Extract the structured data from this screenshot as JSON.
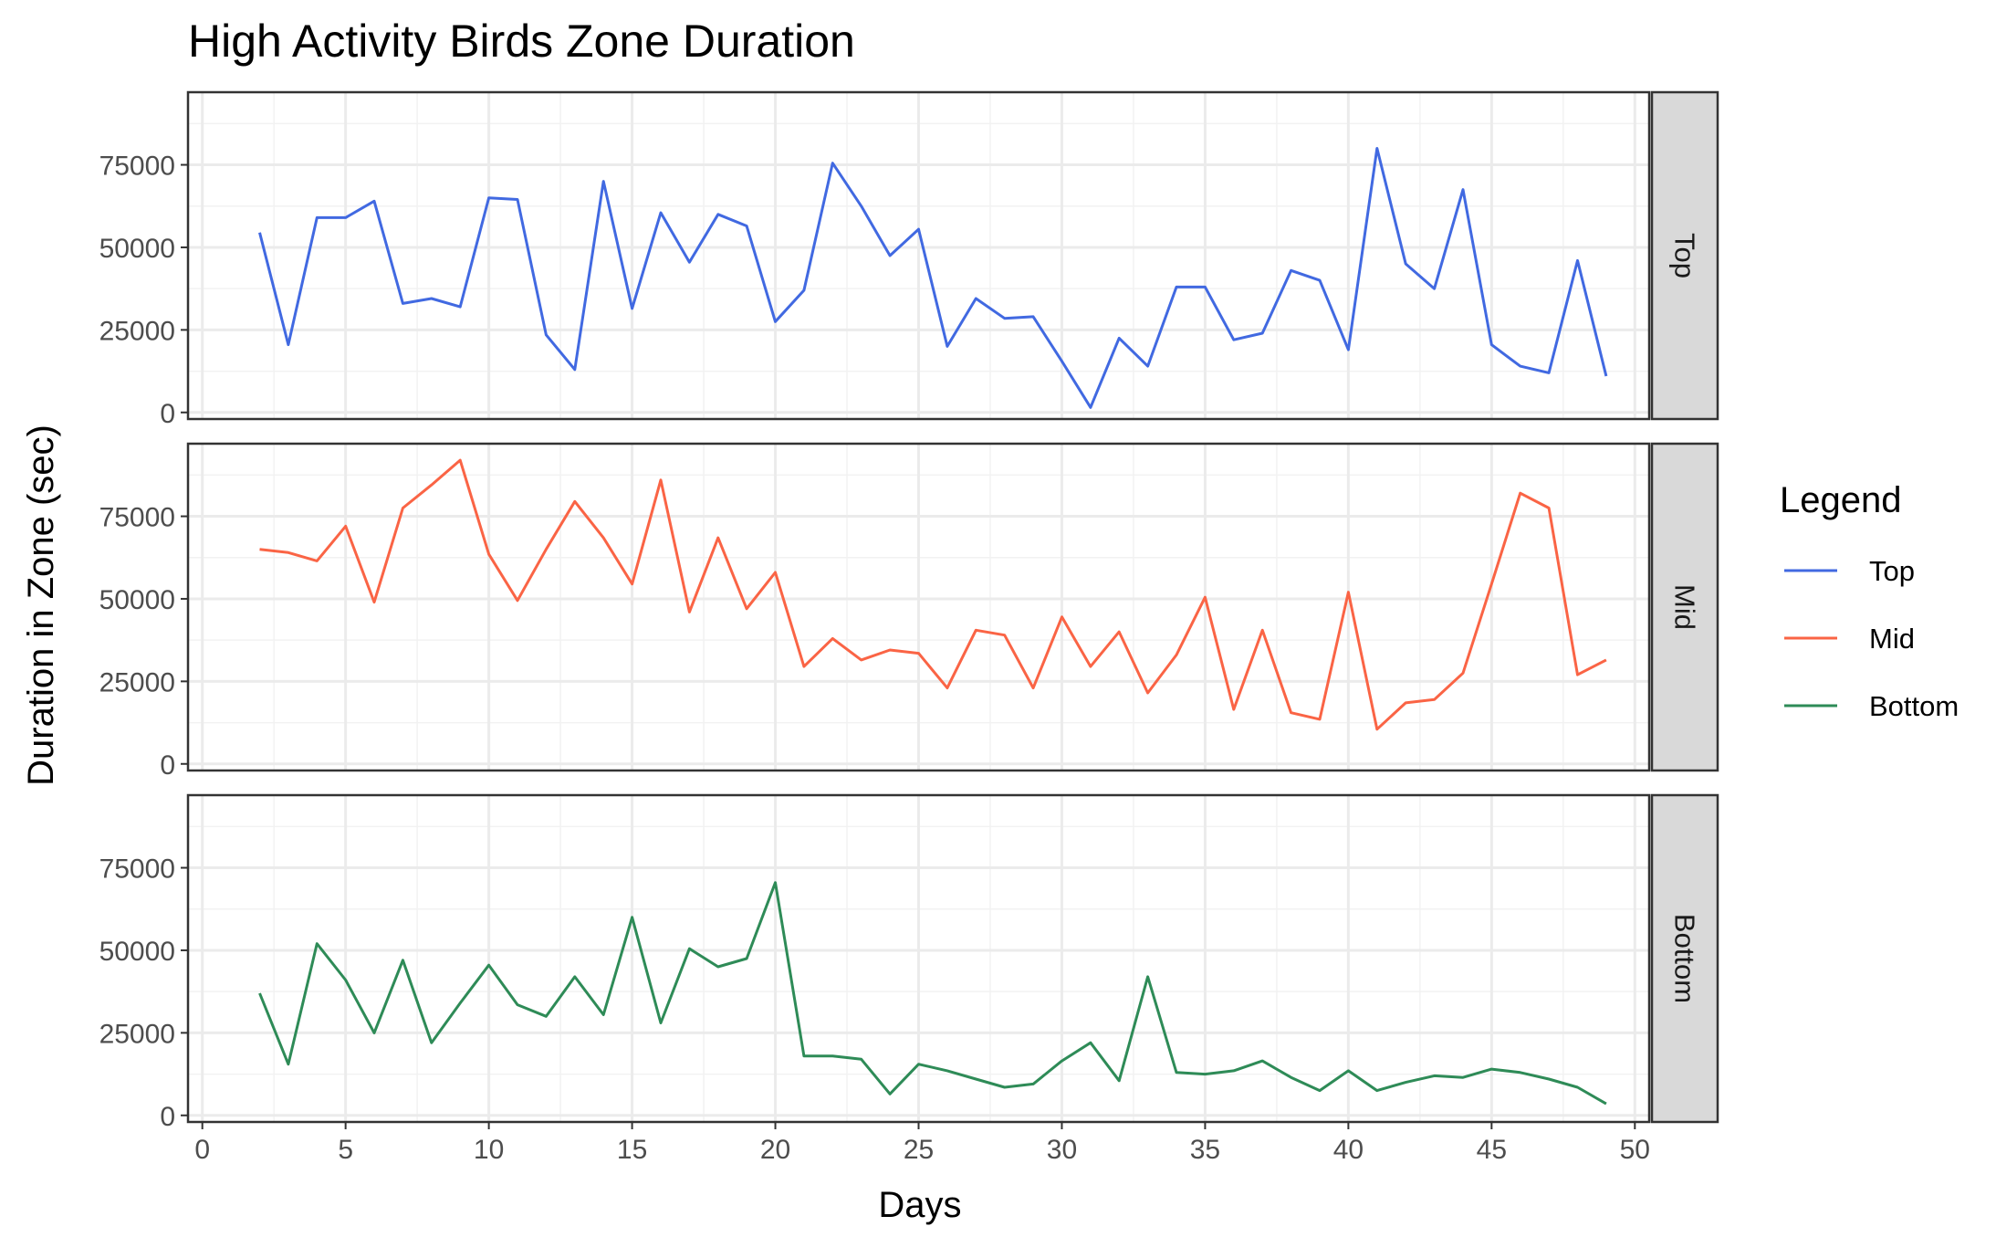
{
  "chart_data": {
    "type": "line",
    "title": "High Activity Birds Zone Duration",
    "xlabel": "Days",
    "ylabel": "Duration in Zone (sec)",
    "xlim": [
      -0.5,
      50.5
    ],
    "ylim": [
      -2000,
      97000
    ],
    "x_ticks": [
      "0",
      "5",
      "10",
      "15",
      "20",
      "25",
      "30",
      "35",
      "40",
      "45",
      "50"
    ],
    "y_ticks": [
      "0",
      "25000",
      "50000",
      "75000"
    ],
    "grid": true,
    "facets": "rows",
    "legend": {
      "title": "Legend",
      "position": "right"
    },
    "x": [
      2,
      3,
      4,
      5,
      6,
      7,
      8,
      9,
      10,
      11,
      12,
      13,
      14,
      15,
      16,
      17,
      18,
      19,
      20,
      21,
      22,
      23,
      24,
      25,
      26,
      27,
      28,
      29,
      30,
      31,
      32,
      33,
      34,
      35,
      36,
      37,
      38,
      39,
      40,
      41,
      42,
      43,
      44,
      45,
      46,
      47,
      48,
      49
    ],
    "series": [
      {
        "name": "Top",
        "color": "#4169E1",
        "values": [
          54500,
          20500,
          59000,
          59000,
          64000,
          33000,
          34500,
          32000,
          65000,
          64500,
          23500,
          13000,
          70000,
          31500,
          60500,
          45500,
          60000,
          56500,
          27500,
          37000,
          75500,
          62500,
          47500,
          55500,
          20000,
          34500,
          28500,
          29000,
          15500,
          1500,
          22500,
          14000,
          38000,
          38000,
          22000,
          24000,
          43000,
          40000,
          19000,
          80000,
          45000,
          37500,
          67500,
          20500,
          14000,
          12000,
          46000,
          11000
        ]
      },
      {
        "name": "Mid",
        "color": "#FA6445",
        "values": [
          65000,
          64000,
          61500,
          72000,
          49000,
          77500,
          84500,
          92000,
          63500,
          49500,
          65000,
          79500,
          68500,
          54500,
          86000,
          46000,
          68500,
          47000,
          58000,
          29500,
          38000,
          31500,
          34500,
          33500,
          23000,
          40500,
          39000,
          23000,
          44500,
          29500,
          40000,
          21500,
          33000,
          50500,
          16500,
          40500,
          15500,
          13500,
          52000,
          10500,
          18500,
          19500,
          27500,
          54500,
          82000,
          77500,
          27000,
          31500
        ]
      },
      {
        "name": "Bottom",
        "color": "#2E8B57",
        "values": [
          37000,
          15500,
          52000,
          41000,
          25000,
          47000,
          22000,
          34000,
          45500,
          33500,
          30000,
          42000,
          30500,
          60000,
          28000,
          50500,
          45000,
          47500,
          70500,
          18000,
          18000,
          17000,
          6500,
          15500,
          13500,
          11000,
          8500,
          9500,
          16500,
          22000,
          10500,
          42000,
          13000,
          12500,
          13500,
          16500,
          11500,
          7500,
          13500,
          7500,
          10000,
          12000,
          11500,
          14000,
          13000,
          11000,
          8500,
          3500
        ]
      }
    ]
  }
}
